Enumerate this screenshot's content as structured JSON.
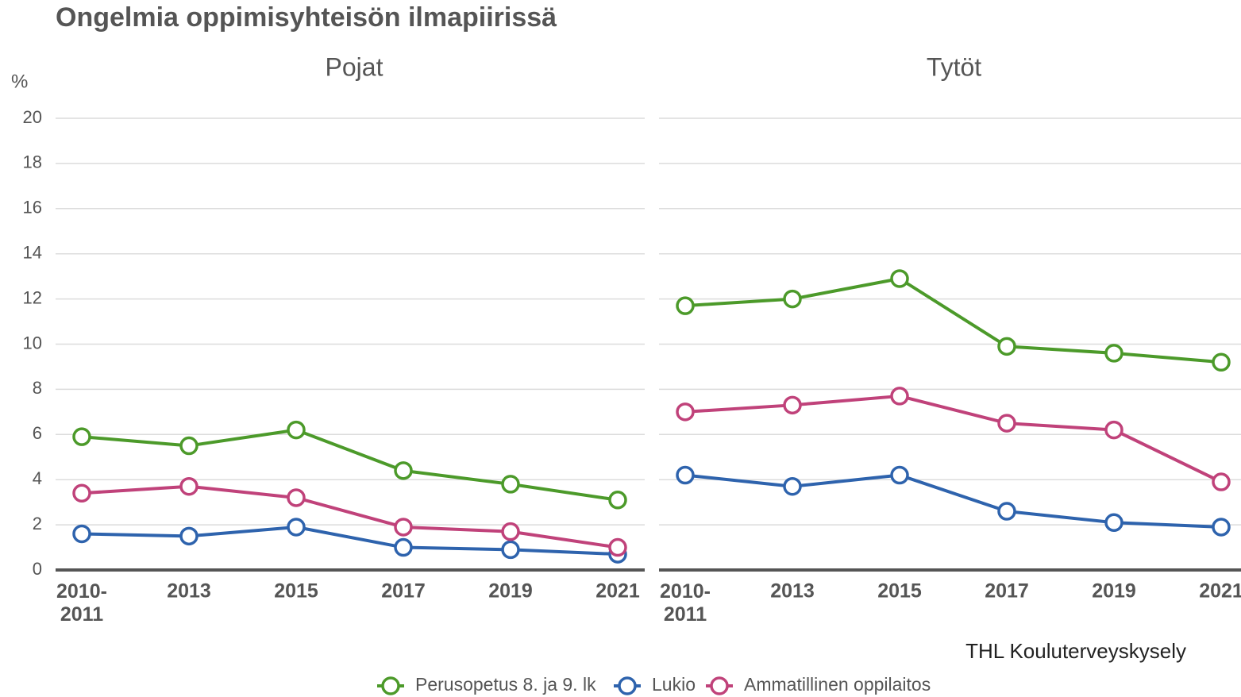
{
  "title": "Ongelmia oppimisyhteisön ilmapiirissä",
  "y_label": "%",
  "source": "THL Kouluterveyskysely",
  "chart_data": [
    {
      "type": "line",
      "title": "Pojat",
      "categories": [
        "2010-\n2011",
        "2013",
        "2015",
        "2017",
        "2019",
        "2021"
      ],
      "series": [
        {
          "name": "Perusopetus 8. ja 9. lk",
          "color": "#4c9a2a",
          "values": [
            5.9,
            5.5,
            6.2,
            4.4,
            3.8,
            3.1
          ]
        },
        {
          "name": "Lukio",
          "color": "#2e63ad",
          "values": [
            1.6,
            1.5,
            1.9,
            1.0,
            0.9,
            0.7
          ]
        },
        {
          "name": "Ammatillinen oppilaitos",
          "color": "#c0427a",
          "values": [
            3.4,
            3.7,
            3.2,
            1.9,
            1.7,
            1.0
          ]
        }
      ],
      "ylim": [
        0,
        20
      ],
      "yticks": [
        0,
        2,
        4,
        6,
        8,
        10,
        12,
        14,
        16,
        18,
        20
      ],
      "grid": true
    },
    {
      "type": "line",
      "title": "Tytöt",
      "categories": [
        "2010-\n2011",
        "2013",
        "2015",
        "2017",
        "2019",
        "2021"
      ],
      "series": [
        {
          "name": "Perusopetus 8. ja 9. lk",
          "color": "#4c9a2a",
          "values": [
            11.7,
            12.0,
            12.9,
            9.9,
            9.6,
            9.2
          ]
        },
        {
          "name": "Lukio",
          "color": "#2e63ad",
          "values": [
            4.2,
            3.7,
            4.2,
            2.6,
            2.1,
            1.9
          ]
        },
        {
          "name": "Ammatillinen oppilaitos",
          "color": "#c0427a",
          "values": [
            7.0,
            7.3,
            7.7,
            6.5,
            6.2,
            3.9
          ]
        }
      ],
      "ylim": [
        0,
        20
      ],
      "yticks": [
        0,
        2,
        4,
        6,
        8,
        10,
        12,
        14,
        16,
        18,
        20
      ],
      "grid": true
    }
  ]
}
